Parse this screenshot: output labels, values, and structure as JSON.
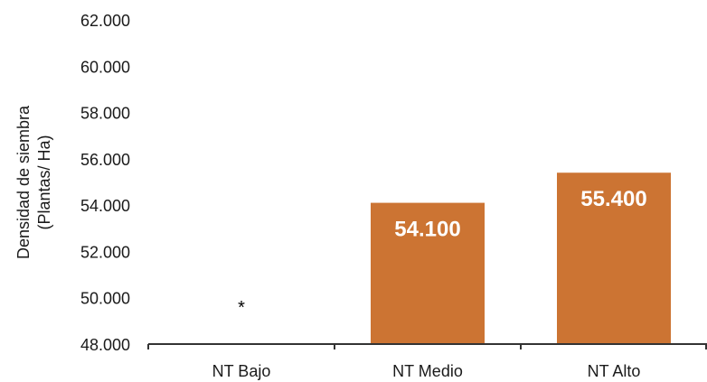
{
  "chart_data": {
    "type": "bar",
    "title": "",
    "xlabel": "",
    "ylabel_lines": [
      "Densidad de siembra",
      "(Plantas/ Ha)"
    ],
    "categories": [
      "NT Bajo",
      "NT Medio",
      "NT Alto"
    ],
    "values": [
      null,
      54100,
      55400
    ],
    "data_labels": [
      "*",
      "54.100",
      "55.400"
    ],
    "ylim": [
      48000,
      62000
    ],
    "y_ticks": [
      48000,
      50000,
      52000,
      54000,
      56000,
      58000,
      60000,
      62000
    ],
    "y_tick_labels": [
      "48.000",
      "50.000",
      "52.000",
      "54.000",
      "56.000",
      "58.000",
      "60.000",
      "62.000"
    ],
    "grid": false,
    "legend": "none",
    "bar_color": "#CC7433"
  }
}
